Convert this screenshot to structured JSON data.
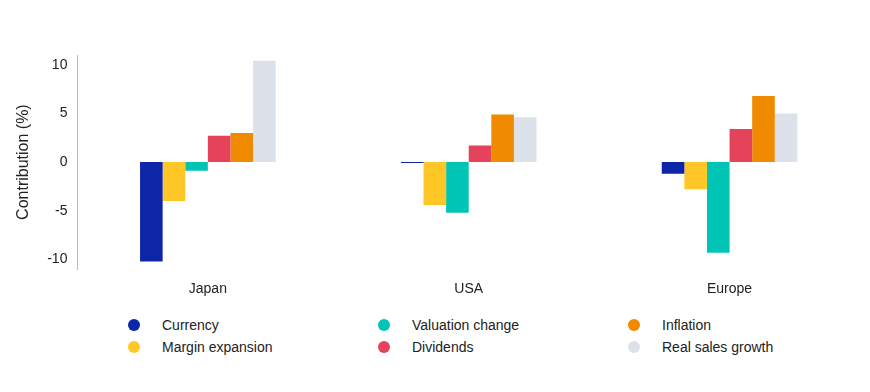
{
  "chart_data": {
    "type": "bar",
    "categories": [
      "Japan",
      "USA",
      "Europe"
    ],
    "series": [
      {
        "name": "Currency",
        "color": "#0d26a8",
        "values": [
          -10.2,
          -0.1,
          -1.2
        ]
      },
      {
        "name": "Margin expansion",
        "color": "#ffc726",
        "values": [
          -4.0,
          -4.4,
          -2.8
        ]
      },
      {
        "name": "Valuation change",
        "color": "#00c5b4",
        "values": [
          -0.9,
          -5.2,
          -9.3
        ]
      },
      {
        "name": "Dividends",
        "color": "#e5425b",
        "values": [
          2.7,
          1.7,
          3.4
        ]
      },
      {
        "name": "Inflation",
        "color": "#f08a00",
        "values": [
          3.0,
          4.9,
          6.8
        ]
      },
      {
        "name": "Real sales growth",
        "color": "#dde2ea",
        "values": [
          10.4,
          4.6,
          5.0
        ]
      }
    ],
    "y_label": "Contribution (%)",
    "ylim": [
      -11,
      11
    ],
    "yticks": [
      -10,
      -5,
      0,
      5,
      10
    ],
    "grid": false,
    "legend": "bottom"
  }
}
